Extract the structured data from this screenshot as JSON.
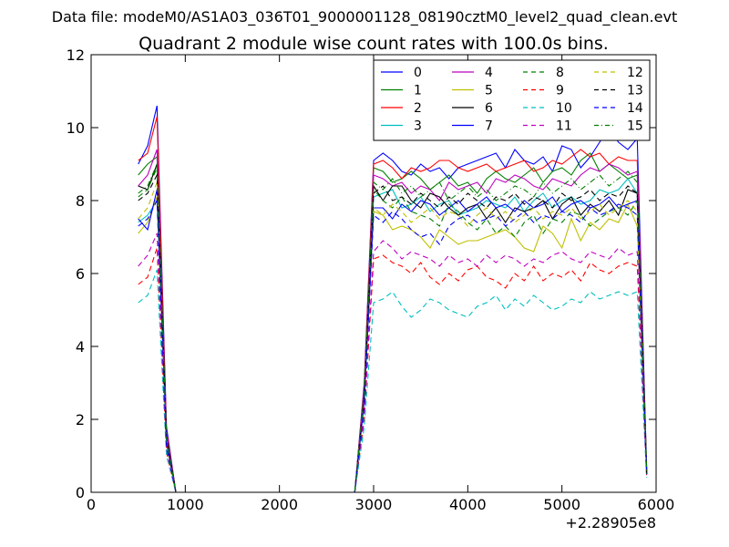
{
  "chart_data": {
    "type": "line",
    "suptitle": "Data file: modeM0/AS1A03_036T01_9000001128_08190cztM0_level2_quad_clean.evt",
    "title": "Quadrant 2 module wise count rates with 100.0s bins.",
    "xlabel": "",
    "ylabel": "",
    "x_offset_label": "+2.28905e8",
    "xlim": [
      0,
      6000
    ],
    "ylim": [
      0,
      12
    ],
    "xticks": [
      0,
      1000,
      2000,
      3000,
      4000,
      5000,
      6000
    ],
    "yticks": [
      0,
      2,
      4,
      6,
      8,
      10,
      12
    ],
    "grid": false,
    "legend_position": "top-right",
    "legend_columns": 4,
    "x": [
      500,
      600,
      700,
      800,
      900,
      1000,
      1100,
      1200,
      1300,
      1400,
      1500,
      1600,
      1700,
      1800,
      1900,
      2000,
      2100,
      2200,
      2300,
      2400,
      2500,
      2600,
      2700,
      2800,
      2900,
      3000,
      3100,
      3200,
      3300,
      3400,
      3500,
      3600,
      3700,
      3800,
      3900,
      4000,
      4100,
      4200,
      4300,
      4400,
      4500,
      4600,
      4700,
      4800,
      4900,
      5000,
      5100,
      5200,
      5300,
      5400,
      5500,
      5600,
      5700,
      5800,
      5900
    ],
    "series": [
      {
        "name": "0",
        "color": "#0000ff",
        "dash": "solid",
        "values": [
          9.0,
          9.5,
          10.6,
          1.8,
          0.0,
          0,
          0,
          0,
          0,
          0,
          0,
          0,
          0,
          0,
          0,
          0,
          0,
          0,
          0,
          0,
          0,
          0,
          0,
          0.0,
          3.0,
          9.1,
          9.3,
          9.1,
          8.8,
          8.7,
          9.0,
          8.8,
          8.9,
          8.6,
          8.9,
          9.0,
          9.1,
          9.2,
          9.3,
          8.9,
          9.4,
          9.1,
          9.0,
          9.2,
          8.8,
          9.5,
          9.4,
          8.9,
          9.2,
          9.6,
          10.0,
          9.6,
          9.4,
          9.7,
          0.6
        ]
      },
      {
        "name": "1",
        "color": "#008000",
        "dash": "solid",
        "values": [
          8.7,
          9.0,
          9.2,
          1.6,
          0.0,
          0,
          0,
          0,
          0,
          0,
          0,
          0,
          0,
          0,
          0,
          0,
          0,
          0,
          0,
          0,
          0,
          0,
          0,
          0.0,
          2.8,
          8.9,
          8.8,
          8.5,
          8.6,
          8.8,
          8.6,
          8.3,
          8.5,
          8.7,
          8.4,
          8.5,
          8.2,
          8.6,
          8.8,
          8.6,
          8.5,
          8.7,
          8.9,
          8.5,
          8.8,
          8.9,
          8.7,
          9.1,
          9.3,
          8.8,
          9.0,
          8.8,
          8.6,
          8.7,
          0.6
        ]
      },
      {
        "name": "2",
        "color": "#ff0000",
        "dash": "solid",
        "values": [
          9.1,
          9.3,
          10.3,
          1.7,
          0.0,
          0,
          0,
          0,
          0,
          0,
          0,
          0,
          0,
          0,
          0,
          0,
          0,
          0,
          0,
          0,
          0,
          0,
          0,
          0.0,
          2.9,
          9.0,
          9.1,
          8.9,
          8.6,
          8.9,
          8.8,
          8.9,
          9.1,
          9.1,
          8.9,
          8.8,
          8.9,
          9.0,
          8.8,
          8.9,
          9.0,
          9.1,
          8.8,
          8.9,
          9.1,
          9.0,
          9.2,
          9.4,
          9.2,
          9.3,
          9.0,
          9.2,
          9.1,
          9.1,
          0.6
        ]
      },
      {
        "name": "3",
        "color": "#00bfbf",
        "dash": "solid",
        "values": [
          7.4,
          7.6,
          8.0,
          1.4,
          0.0,
          0,
          0,
          0,
          0,
          0,
          0,
          0,
          0,
          0,
          0,
          0,
          0,
          0,
          0,
          0,
          0,
          0,
          0,
          0.0,
          2.5,
          8.1,
          8.2,
          8.3,
          7.8,
          7.9,
          8.1,
          7.7,
          7.9,
          8.0,
          7.6,
          7.7,
          7.8,
          8.0,
          7.9,
          7.8,
          8.1,
          7.7,
          8.0,
          8.2,
          7.8,
          8.0,
          8.1,
          7.9,
          8.0,
          8.3,
          8.2,
          8.3,
          8.6,
          8.2,
          0.5
        ]
      },
      {
        "name": "4",
        "color": "#bf00bf",
        "dash": "solid",
        "values": [
          8.4,
          8.7,
          9.4,
          1.6,
          0.0,
          0,
          0,
          0,
          0,
          0,
          0,
          0,
          0,
          0,
          0,
          0,
          0,
          0,
          0,
          0,
          0,
          0,
          0,
          0.0,
          2.8,
          8.7,
          8.6,
          8.4,
          8.5,
          8.2,
          8.4,
          8.3,
          8.0,
          8.5,
          8.3,
          8.4,
          8.5,
          8.2,
          8.6,
          8.5,
          8.7,
          8.6,
          8.4,
          8.3,
          8.6,
          8.5,
          8.4,
          8.7,
          8.9,
          8.8,
          9.0,
          8.9,
          8.7,
          8.8,
          0.5
        ]
      },
      {
        "name": "5",
        "color": "#bfbf00",
        "dash": "solid",
        "values": [
          7.1,
          7.4,
          8.1,
          1.3,
          0.0,
          0,
          0,
          0,
          0,
          0,
          0,
          0,
          0,
          0,
          0,
          0,
          0,
          0,
          0,
          0,
          0,
          0,
          0,
          0.0,
          2.5,
          7.7,
          7.6,
          7.2,
          7.3,
          7.2,
          7.0,
          6.7,
          7.2,
          7.0,
          6.8,
          6.9,
          6.9,
          7.0,
          7.1,
          7.2,
          7.0,
          6.7,
          6.6,
          7.3,
          7.1,
          6.7,
          7.5,
          6.9,
          7.4,
          7.2,
          7.5,
          7.4,
          7.9,
          7.3,
          0.5
        ]
      },
      {
        "name": "6",
        "color": "#000000",
        "dash": "solid",
        "values": [
          8.4,
          8.3,
          9.0,
          1.5,
          0.0,
          0,
          0,
          0,
          0,
          0,
          0,
          0,
          0,
          0,
          0,
          0,
          0,
          0,
          0,
          0,
          0,
          0,
          0,
          0.0,
          2.6,
          8.4,
          8.0,
          8.4,
          8.4,
          8.0,
          7.8,
          8.2,
          8.1,
          7.8,
          7.6,
          7.8,
          7.9,
          7.5,
          7.8,
          7.4,
          7.8,
          7.7,
          7.8,
          8.0,
          7.5,
          7.9,
          8.1,
          7.6,
          7.9,
          7.7,
          8.0,
          7.6,
          8.3,
          8.2,
          0.5
        ]
      },
      {
        "name": "7",
        "color": "#0000ff",
        "dash": "solid",
        "values": [
          7.5,
          7.2,
          8.3,
          1.4,
          0.0,
          0,
          0,
          0,
          0,
          0,
          0,
          0,
          0,
          0,
          0,
          0,
          0,
          0,
          0,
          0,
          0,
          0,
          0,
          0.0,
          2.5,
          7.8,
          7.8,
          7.5,
          7.9,
          7.7,
          8.0,
          7.9,
          7.6,
          7.8,
          8.0,
          7.7,
          7.9,
          8.1,
          7.8,
          7.9,
          7.7,
          8.0,
          7.8,
          7.9,
          8.1,
          7.7,
          7.9,
          8.0,
          7.8,
          7.9,
          8.1,
          7.8,
          7.9,
          8.0,
          0.5
        ]
      },
      {
        "name": "8",
        "color": "#008000",
        "dash": "dashed",
        "values": [
          8.1,
          8.3,
          8.9,
          1.5,
          0.0,
          0,
          0,
          0,
          0,
          0,
          0,
          0,
          0,
          0,
          0,
          0,
          0,
          0,
          0,
          0,
          0,
          0,
          0,
          0.0,
          2.7,
          8.3,
          8.0,
          7.8,
          8.1,
          7.7,
          7.6,
          7.5,
          7.3,
          7.9,
          7.7,
          7.4,
          7.2,
          7.5,
          7.1,
          7.3,
          7.0,
          7.4,
          7.6,
          7.1,
          7.5,
          7.4,
          7.7,
          7.6,
          7.3,
          7.5,
          7.7,
          7.8,
          7.6,
          8.0,
          0.5
        ]
      },
      {
        "name": "9",
        "color": "#ff0000",
        "dash": "dashed",
        "values": [
          5.7,
          5.9,
          6.7,
          1.1,
          0.0,
          0,
          0,
          0,
          0,
          0,
          0,
          0,
          0,
          0,
          0,
          0,
          0,
          0,
          0,
          0,
          0,
          0,
          0,
          0.0,
          2.0,
          6.4,
          6.5,
          6.3,
          6.2,
          6.0,
          6.3,
          5.9,
          5.7,
          6.0,
          5.8,
          6.1,
          6.2,
          5.9,
          5.8,
          5.6,
          6.0,
          5.8,
          6.2,
          5.8,
          6.0,
          5.9,
          6.1,
          5.8,
          6.3,
          6.1,
          6.0,
          6.2,
          6.3,
          6.2,
          0.4
        ]
      },
      {
        "name": "10",
        "color": "#00bfbf",
        "dash": "dashed",
        "values": [
          5.2,
          5.4,
          6.1,
          1.0,
          0.0,
          0,
          0,
          0,
          0,
          0,
          0,
          0,
          0,
          0,
          0,
          0,
          0,
          0,
          0,
          0,
          0,
          0,
          0,
          0.0,
          1.8,
          5.2,
          5.3,
          5.5,
          5.1,
          4.8,
          5.0,
          5.3,
          5.2,
          5.0,
          4.9,
          4.8,
          5.1,
          5.2,
          5.4,
          5.0,
          5.3,
          5.1,
          5.4,
          5.2,
          5.0,
          5.1,
          5.3,
          5.2,
          5.5,
          5.3,
          5.4,
          5.5,
          5.4,
          5.5,
          0.4
        ]
      },
      {
        "name": "11",
        "color": "#bf00bf",
        "dash": "dashed",
        "values": [
          6.2,
          6.5,
          7.1,
          1.2,
          0.0,
          0,
          0,
          0,
          0,
          0,
          0,
          0,
          0,
          0,
          0,
          0,
          0,
          0,
          0,
          0,
          0,
          0,
          0,
          0.0,
          2.2,
          6.6,
          6.9,
          6.7,
          6.4,
          6.6,
          6.5,
          6.4,
          6.2,
          6.5,
          6.3,
          6.4,
          6.2,
          6.5,
          6.3,
          6.5,
          6.4,
          6.2,
          6.4,
          6.3,
          6.5,
          6.6,
          6.4,
          6.3,
          6.6,
          6.5,
          6.4,
          6.7,
          6.5,
          6.6,
          0.4
        ]
      },
      {
        "name": "12",
        "color": "#bfbf00",
        "dash": "dashed",
        "values": [
          7.5,
          7.8,
          8.5,
          1.4,
          0.0,
          0,
          0,
          0,
          0,
          0,
          0,
          0,
          0,
          0,
          0,
          0,
          0,
          0,
          0,
          0,
          0,
          0,
          0,
          0.0,
          2.5,
          7.8,
          7.6,
          7.9,
          7.7,
          7.4,
          7.6,
          7.8,
          7.5,
          7.7,
          7.6,
          7.3,
          7.6,
          7.8,
          7.5,
          7.7,
          7.4,
          7.6,
          7.8,
          7.5,
          7.7,
          7.6,
          7.8,
          7.5,
          7.7,
          7.9,
          7.6,
          7.8,
          8.0,
          7.7,
          0.5
        ]
      },
      {
        "name": "13",
        "color": "#000000",
        "dash": "dashed",
        "values": [
          8.0,
          8.2,
          8.7,
          1.5,
          0.0,
          0,
          0,
          0,
          0,
          0,
          0,
          0,
          0,
          0,
          0,
          0,
          0,
          0,
          0,
          0,
          0,
          0,
          0,
          0.0,
          2.6,
          8.2,
          8.4,
          8.0,
          8.1,
          7.9,
          8.2,
          8.0,
          7.8,
          8.1,
          7.9,
          8.2,
          8.0,
          7.8,
          8.1,
          8.0,
          8.2,
          7.9,
          8.1,
          8.0,
          7.8,
          8.2,
          8.0,
          8.1,
          8.3,
          8.0,
          8.2,
          8.1,
          8.4,
          8.2,
          0.5
        ]
      },
      {
        "name": "14",
        "color": "#0000ff",
        "dash": "dashed",
        "values": [
          7.3,
          7.5,
          8.0,
          1.3,
          0.0,
          0,
          0,
          0,
          0,
          0,
          0,
          0,
          0,
          0,
          0,
          0,
          0,
          0,
          0,
          0,
          0,
          0,
          0,
          0.0,
          2.4,
          7.6,
          7.4,
          7.7,
          7.5,
          7.2,
          7.0,
          7.1,
          6.8,
          7.3,
          7.5,
          7.6,
          7.4,
          7.5,
          7.6,
          7.3,
          7.5,
          7.7,
          7.4,
          7.6,
          7.5,
          7.7,
          7.6,
          7.4,
          7.8,
          7.6,
          7.7,
          7.9,
          7.8,
          7.6,
          0.5
        ]
      },
      {
        "name": "15",
        "color": "#008000",
        "dash": "dashdot",
        "values": [
          8.2,
          8.4,
          9.0,
          1.5,
          0.0,
          0,
          0,
          0,
          0,
          0,
          0,
          0,
          0,
          0,
          0,
          0,
          0,
          0,
          0,
          0,
          0,
          0,
          0,
          0.0,
          2.7,
          8.5,
          8.3,
          8.6,
          8.2,
          8.4,
          8.1,
          8.3,
          8.5,
          8.0,
          8.2,
          8.4,
          8.1,
          8.3,
          8.0,
          8.2,
          8.4,
          8.3,
          8.1,
          8.5,
          8.2,
          8.4,
          8.6,
          8.3,
          8.5,
          8.7,
          8.4,
          8.6,
          8.8,
          8.5,
          0.5
        ]
      }
    ]
  }
}
